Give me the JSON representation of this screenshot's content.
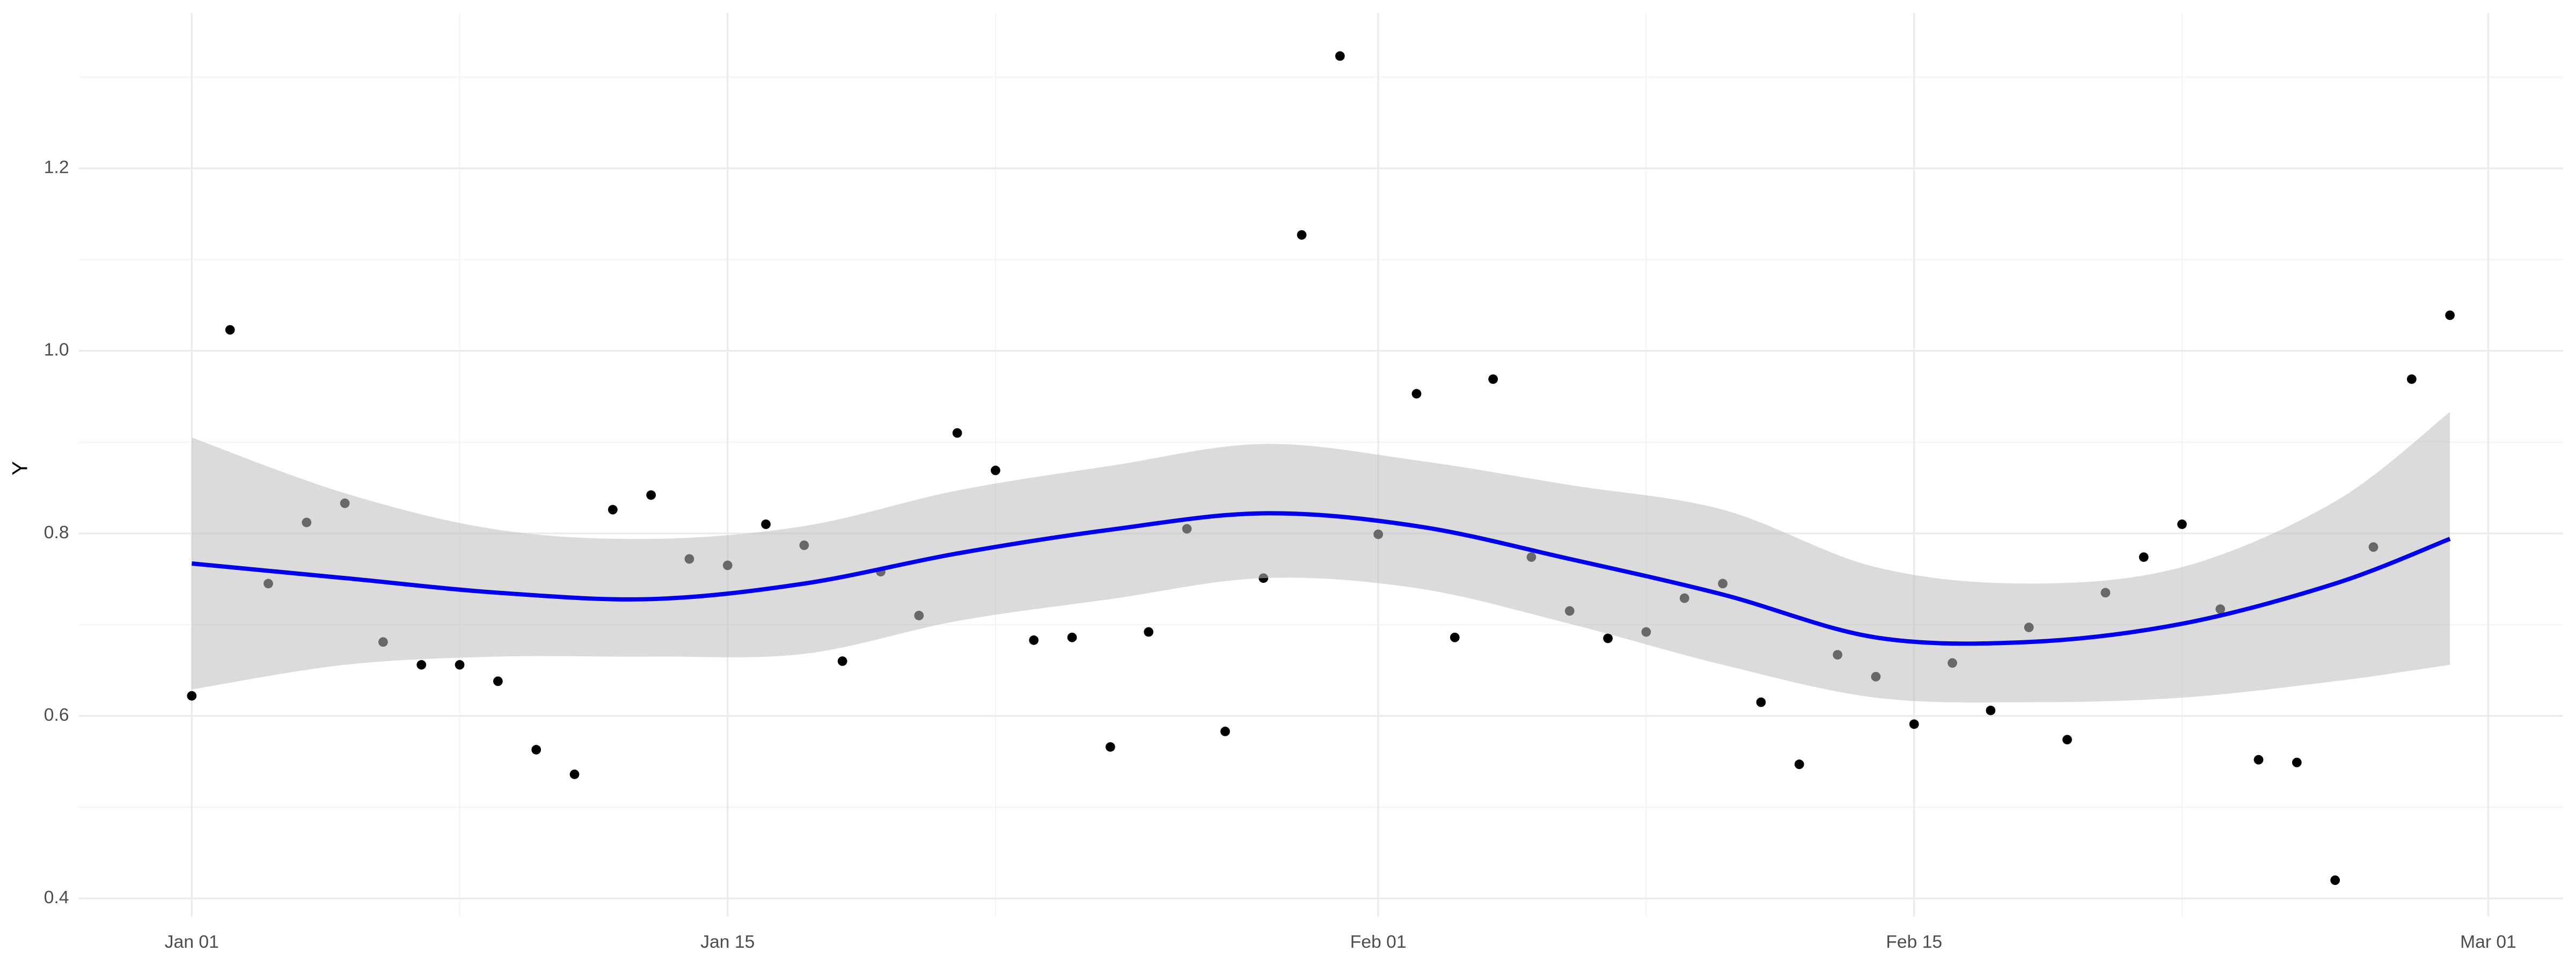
{
  "chart_data": {
    "type": "scatter",
    "y_label": "Y",
    "x": [
      "Jan 01",
      "Jan 02",
      "Jan 03",
      "Jan 04",
      "Jan 05",
      "Jan 06",
      "Jan 07",
      "Jan 08",
      "Jan 09",
      "Jan 10",
      "Jan 11",
      "Jan 12",
      "Jan 13",
      "Jan 14",
      "Jan 15",
      "Jan 16",
      "Jan 17",
      "Jan 18",
      "Jan 19",
      "Jan 20",
      "Jan 21",
      "Jan 22",
      "Jan 23",
      "Jan 24",
      "Jan 25",
      "Jan 26",
      "Jan 27",
      "Jan 28",
      "Jan 29",
      "Jan 30",
      "Jan 31",
      "Feb 01",
      "Feb 02",
      "Feb 03",
      "Feb 04",
      "Feb 05",
      "Feb 06",
      "Feb 07",
      "Feb 08",
      "Feb 09",
      "Feb 10",
      "Feb 11",
      "Feb 12",
      "Feb 13",
      "Feb 14",
      "Feb 15",
      "Feb 16",
      "Feb 17",
      "Feb 18",
      "Feb 19",
      "Feb 20",
      "Feb 21",
      "Feb 22",
      "Feb 23",
      "Feb 24",
      "Feb 25",
      "Feb 26",
      "Feb 27",
      "Feb 28",
      "Feb 29"
    ],
    "values": [
      0.622,
      1.023,
      0.745,
      0.812,
      0.833,
      0.681,
      0.656,
      0.656,
      0.638,
      0.563,
      0.536,
      0.826,
      0.842,
      0.772,
      0.765,
      0.81,
      0.787,
      0.66,
      0.758,
      0.71,
      0.91,
      0.869,
      0.683,
      0.686,
      0.566,
      0.692,
      0.805,
      0.583,
      0.751,
      1.127,
      1.323,
      0.799,
      0.953,
      0.686,
      0.969,
      0.774,
      0.715,
      0.685,
      0.692,
      0.729,
      0.745,
      0.615,
      0.547,
      0.667,
      0.643,
      0.591,
      0.658,
      0.606,
      0.697,
      0.574,
      0.735,
      0.774,
      0.81,
      0.717,
      0.552,
      0.549,
      0.42,
      0.785,
      0.969,
      1.039
    ],
    "color": "#000000",
    "smooth": {
      "color": "#0000ee",
      "band_color": "#bebebe",
      "x": [
        "Jan 01",
        "Jan 05",
        "Jan 09",
        "Jan 13",
        "Jan 17",
        "Jan 21",
        "Jan 25",
        "Jan 29",
        "Feb 02",
        "Feb 06",
        "Feb 10",
        "Feb 14",
        "Feb 18",
        "Feb 22",
        "Feb 26",
        "Feb 29"
      ],
      "values": [
        0.767,
        0.751,
        0.735,
        0.728,
        0.745,
        0.778,
        0.804,
        0.822,
        0.808,
        0.772,
        0.733,
        0.686,
        0.681,
        0.701,
        0.745,
        0.794
      ],
      "upper": [
        0.905,
        0.844,
        0.804,
        0.794,
        0.808,
        0.847,
        0.874,
        0.898,
        0.88,
        0.853,
        0.826,
        0.763,
        0.745,
        0.763,
        0.835,
        0.933
      ],
      "lower": [
        0.629,
        0.656,
        0.665,
        0.665,
        0.668,
        0.704,
        0.728,
        0.751,
        0.74,
        0.701,
        0.656,
        0.62,
        0.615,
        0.62,
        0.638,
        0.656
      ]
    },
    "xlim": [
      "Jan 01",
      "Feb 29"
    ],
    "xticks": [
      "Jan 01",
      "Jan 15",
      "Feb 01",
      "Feb 15",
      "Mar 01"
    ],
    "minor_xticks": [
      "Jan 08",
      "Jan 22",
      "Feb 08",
      "Feb 22"
    ],
    "ylim": [
      0.38,
      1.37
    ],
    "yticks": [
      0.4,
      0.6,
      0.8,
      {
        "value": 1.0,
        "label": "1.0"
      },
      1.2
    ],
    "minor_yticks": [
      0.5,
      0.7,
      0.9,
      1.1,
      1.3
    ],
    "grid": true
  }
}
